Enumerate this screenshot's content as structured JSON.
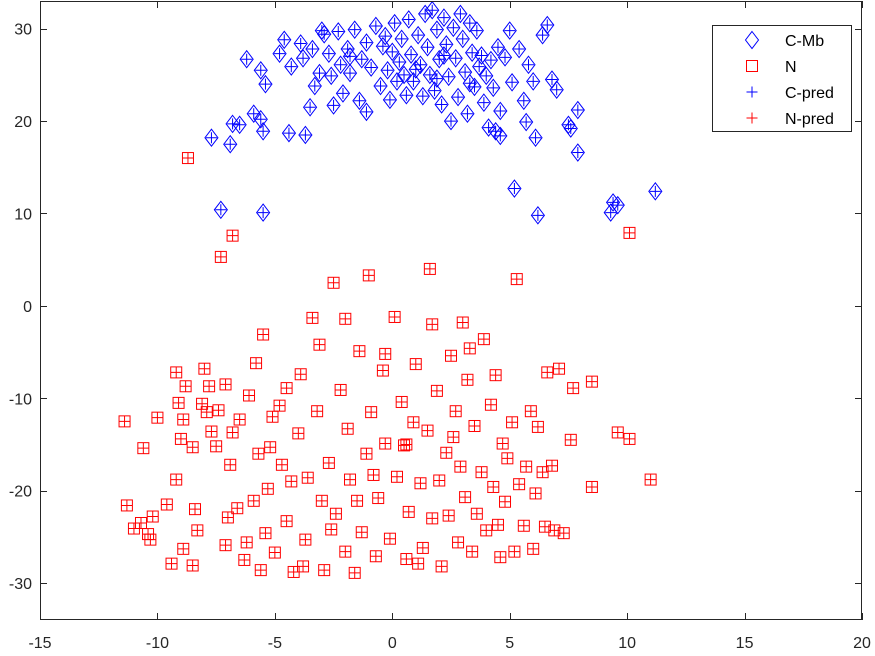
{
  "chart_data": {
    "type": "scatter",
    "title": "",
    "xlabel": "",
    "ylabel": "",
    "xlim": [
      -15,
      20
    ],
    "ylim": [
      -34,
      33
    ],
    "xticks": [
      -15,
      -10,
      -5,
      0,
      5,
      10,
      15,
      20
    ],
    "yticks": [
      -30,
      -20,
      -10,
      0,
      10,
      20,
      30
    ],
    "xtick_labels": [
      "-15",
      "-10",
      "-5",
      "0",
      "5",
      "10",
      "15",
      "20"
    ],
    "ytick_labels": [
      "-30",
      "-20",
      "-10",
      "0",
      "10",
      "20",
      "30"
    ],
    "grid": false,
    "legend_position": "top-right",
    "series": [
      {
        "name": "C-Mb",
        "marker": "diamond",
        "color": "#0000ff",
        "points": [
          [
            -7.7,
            18.2
          ],
          [
            -7.3,
            10.4
          ],
          [
            -6.8,
            19.7
          ],
          [
            -6.9,
            17.5
          ],
          [
            -6.5,
            19.6
          ],
          [
            -6.2,
            26.7
          ],
          [
            -5.9,
            20.8
          ],
          [
            -5.6,
            20.2
          ],
          [
            -5.5,
            18.9
          ],
          [
            -5.6,
            25.5
          ],
          [
            -5.5,
            10.1
          ],
          [
            -5.4,
            24.0
          ],
          [
            -4.8,
            27.3
          ],
          [
            -4.6,
            28.8
          ],
          [
            -4.4,
            18.7
          ],
          [
            -4.3,
            25.9
          ],
          [
            -3.9,
            28.4
          ],
          [
            -3.8,
            26.8
          ],
          [
            -3.7,
            18.5
          ],
          [
            -3.5,
            21.5
          ],
          [
            -3.4,
            27.8
          ],
          [
            -3.3,
            23.8
          ],
          [
            -3.1,
            25.2
          ],
          [
            -3.0,
            29.8
          ],
          [
            -2.7,
            27.3
          ],
          [
            -2.6,
            24.9
          ],
          [
            -2.5,
            21.7
          ],
          [
            -2.3,
            29.7
          ],
          [
            -2.2,
            26.1
          ],
          [
            -2.1,
            23.0
          ],
          [
            -1.9,
            27.8
          ],
          [
            -1.8,
            25.2
          ],
          [
            -1.6,
            29.9
          ],
          [
            -1.4,
            22.2
          ],
          [
            -1.3,
            26.7
          ],
          [
            -1.1,
            28.5
          ],
          [
            -1.1,
            21.0
          ],
          [
            -0.9,
            25.8
          ],
          [
            -0.7,
            30.3
          ],
          [
            -0.5,
            23.8
          ],
          [
            -0.4,
            28.1
          ],
          [
            -0.2,
            25.5
          ],
          [
            -0.1,
            22.3
          ],
          [
            0.0,
            27.5
          ],
          [
            0.1,
            30.6
          ],
          [
            0.2,
            24.3
          ],
          [
            0.4,
            28.9
          ],
          [
            0.5,
            25.0
          ],
          [
            0.6,
            22.8
          ],
          [
            0.7,
            31.0
          ],
          [
            0.8,
            27.2
          ],
          [
            0.9,
            24.3
          ],
          [
            1.1,
            29.3
          ],
          [
            1.2,
            26.1
          ],
          [
            1.3,
            22.7
          ],
          [
            1.4,
            31.6
          ],
          [
            1.5,
            28.0
          ],
          [
            1.6,
            25.0
          ],
          [
            1.7,
            32.0
          ],
          [
            1.8,
            23.3
          ],
          [
            1.9,
            29.9
          ],
          [
            2.0,
            26.7
          ],
          [
            2.1,
            21.8
          ],
          [
            2.2,
            31.2
          ],
          [
            2.3,
            28.3
          ],
          [
            2.4,
            24.8
          ],
          [
            2.5,
            20.0
          ],
          [
            2.6,
            30.1
          ],
          [
            2.7,
            26.8
          ],
          [
            2.8,
            22.6
          ],
          [
            2.9,
            31.6
          ],
          [
            3.0,
            28.9
          ],
          [
            3.1,
            25.3
          ],
          [
            3.2,
            20.8
          ],
          [
            3.3,
            30.6
          ],
          [
            3.4,
            27.4
          ],
          [
            3.5,
            23.7
          ],
          [
            3.6,
            29.8
          ],
          [
            3.7,
            25.9
          ],
          [
            3.9,
            22.0
          ],
          [
            4.0,
            24.9
          ],
          [
            4.1,
            19.3
          ],
          [
            4.2,
            26.6
          ],
          [
            4.3,
            23.6
          ],
          [
            4.4,
            18.9
          ],
          [
            4.5,
            28.0
          ],
          [
            4.6,
            21.1
          ],
          [
            4.6,
            18.4
          ],
          [
            4.8,
            26.9
          ],
          [
            5.0,
            29.8
          ],
          [
            5.1,
            24.2
          ],
          [
            5.2,
            12.7
          ],
          [
            5.4,
            27.8
          ],
          [
            5.6,
            22.2
          ],
          [
            5.7,
            19.9
          ],
          [
            5.8,
            26.1
          ],
          [
            6.0,
            24.3
          ],
          [
            6.1,
            18.2
          ],
          [
            6.2,
            9.8
          ],
          [
            6.4,
            29.3
          ],
          [
            6.6,
            30.4
          ],
          [
            6.8,
            24.5
          ],
          [
            7.0,
            23.4
          ],
          [
            7.5,
            19.6
          ],
          [
            7.6,
            19.2
          ],
          [
            7.9,
            21.2
          ],
          [
            7.9,
            16.6
          ],
          [
            9.3,
            10.1
          ],
          [
            9.4,
            11.2
          ],
          [
            9.6,
            10.9
          ],
          [
            11.2,
            12.4
          ],
          [
            -1.8,
            27.0
          ],
          [
            -0.3,
            29.2
          ],
          [
            1.0,
            25.6
          ],
          [
            2.2,
            27.1
          ],
          [
            3.3,
            24.1
          ],
          [
            -2.9,
            29.4
          ],
          [
            0.3,
            26.4
          ],
          [
            1.9,
            24.6
          ],
          [
            3.8,
            27.1
          ]
        ]
      },
      {
        "name": "N",
        "marker": "square",
        "color": "#ff0000",
        "points": [
          [
            -11.4,
            -12.5
          ],
          [
            -11.3,
            -21.6
          ],
          [
            -11.0,
            -24.1
          ],
          [
            -10.7,
            -23.5
          ],
          [
            -10.6,
            -15.4
          ],
          [
            -10.4,
            -24.7
          ],
          [
            -10.3,
            -25.3
          ],
          [
            -10.2,
            -22.8
          ],
          [
            -10.0,
            -12.1
          ],
          [
            -9.6,
            -21.5
          ],
          [
            -9.4,
            -27.9
          ],
          [
            -9.2,
            -18.8
          ],
          [
            -9.2,
            -7.2
          ],
          [
            -9.1,
            -10.5
          ],
          [
            -9.0,
            -14.4
          ],
          [
            -8.9,
            -12.3
          ],
          [
            -8.9,
            -26.3
          ],
          [
            -8.8,
            -8.7
          ],
          [
            -8.7,
            16.0
          ],
          [
            -8.5,
            -15.3
          ],
          [
            -8.5,
            -28.1
          ],
          [
            -8.4,
            -22.0
          ],
          [
            -8.3,
            -24.3
          ],
          [
            -8.1,
            -10.6
          ],
          [
            -8.0,
            -6.8
          ],
          [
            -7.9,
            -11.5
          ],
          [
            -7.8,
            -8.7
          ],
          [
            -7.7,
            -13.6
          ],
          [
            -7.5,
            -15.2
          ],
          [
            -7.4,
            -11.3
          ],
          [
            -7.3,
            5.3
          ],
          [
            -7.1,
            -8.5
          ],
          [
            -7.1,
            -25.9
          ],
          [
            -7.0,
            -22.9
          ],
          [
            -6.9,
            -17.2
          ],
          [
            -6.8,
            7.6
          ],
          [
            -6.6,
            -21.9
          ],
          [
            -6.5,
            -12.3
          ],
          [
            -6.3,
            -27.5
          ],
          [
            -6.2,
            -25.6
          ],
          [
            -6.1,
            -9.7
          ],
          [
            -5.9,
            -21.1
          ],
          [
            -5.8,
            -6.2
          ],
          [
            -5.7,
            -16.0
          ],
          [
            -5.6,
            -28.6
          ],
          [
            -5.5,
            -3.1
          ],
          [
            -5.4,
            -24.6
          ],
          [
            -5.3,
            -19.8
          ],
          [
            -5.1,
            -12.0
          ],
          [
            -5.0,
            -26.7
          ],
          [
            -4.8,
            -10.8
          ],
          [
            -4.7,
            -17.2
          ],
          [
            -4.5,
            -23.3
          ],
          [
            -4.3,
            -19.0
          ],
          [
            -4.2,
            -28.8
          ],
          [
            -4.0,
            -13.8
          ],
          [
            -3.9,
            -7.4
          ],
          [
            -3.7,
            -25.3
          ],
          [
            -3.6,
            -18.6
          ],
          [
            -3.4,
            -1.3
          ],
          [
            -3.2,
            -11.4
          ],
          [
            -3.0,
            -21.1
          ],
          [
            -2.9,
            -28.6
          ],
          [
            -2.7,
            -17.0
          ],
          [
            -2.5,
            2.5
          ],
          [
            -2.4,
            -22.5
          ],
          [
            -2.2,
            -9.1
          ],
          [
            -2.0,
            -26.6
          ],
          [
            -1.9,
            -13.3
          ],
          [
            -1.8,
            -18.8
          ],
          [
            -1.6,
            -28.9
          ],
          [
            -1.4,
            -4.9
          ],
          [
            -1.3,
            -24.5
          ],
          [
            -1.1,
            -16.0
          ],
          [
            -1.0,
            3.3
          ],
          [
            -0.9,
            -11.5
          ],
          [
            -0.7,
            -27.1
          ],
          [
            -0.6,
            -20.8
          ],
          [
            -0.4,
            -7.0
          ],
          [
            -0.3,
            -14.9
          ],
          [
            -0.1,
            -25.2
          ],
          [
            0.1,
            -1.2
          ],
          [
            0.2,
            -18.5
          ],
          [
            0.4,
            -10.4
          ],
          [
            0.5,
            -15.1
          ],
          [
            0.6,
            -27.4
          ],
          [
            0.7,
            -22.3
          ],
          [
            0.9,
            -12.6
          ],
          [
            1.0,
            -6.3
          ],
          [
            1.2,
            -19.2
          ],
          [
            1.3,
            -26.2
          ],
          [
            1.5,
            -13.5
          ],
          [
            1.6,
            4.0
          ],
          [
            1.7,
            -23.0
          ],
          [
            1.9,
            -9.2
          ],
          [
            2.0,
            -18.9
          ],
          [
            2.1,
            -28.2
          ],
          [
            2.3,
            -15.9
          ],
          [
            2.4,
            -22.7
          ],
          [
            2.5,
            -5.4
          ],
          [
            2.7,
            -11.4
          ],
          [
            2.8,
            -25.6
          ],
          [
            2.9,
            -17.4
          ],
          [
            3.1,
            -20.7
          ],
          [
            3.2,
            -8.0
          ],
          [
            3.4,
            -26.6
          ],
          [
            3.5,
            -13.0
          ],
          [
            3.6,
            -22.5
          ],
          [
            3.8,
            -18.0
          ],
          [
            3.9,
            -3.6
          ],
          [
            4.0,
            -24.3
          ],
          [
            4.2,
            -10.7
          ],
          [
            4.3,
            -19.6
          ],
          [
            4.4,
            -7.5
          ],
          [
            4.6,
            -27.2
          ],
          [
            4.7,
            -14.9
          ],
          [
            4.8,
            -21.2
          ],
          [
            4.9,
            -16.5
          ],
          [
            5.1,
            -12.6
          ],
          [
            5.2,
            -26.6
          ],
          [
            5.3,
            2.9
          ],
          [
            5.4,
            -19.3
          ],
          [
            5.6,
            -23.8
          ],
          [
            5.7,
            -17.4
          ],
          [
            5.9,
            -11.4
          ],
          [
            6.0,
            -26.3
          ],
          [
            6.1,
            -20.3
          ],
          [
            6.2,
            -13.1
          ],
          [
            6.4,
            -18.0
          ],
          [
            6.5,
            -23.9
          ],
          [
            6.6,
            -7.2
          ],
          [
            6.8,
            -17.3
          ],
          [
            6.9,
            -24.3
          ],
          [
            7.1,
            -6.8
          ],
          [
            7.3,
            -24.6
          ],
          [
            7.6,
            -14.5
          ],
          [
            7.7,
            -8.9
          ],
          [
            8.5,
            -8.2
          ],
          [
            8.5,
            -19.6
          ],
          [
            9.6,
            -13.7
          ],
          [
            10.1,
            -14.4
          ],
          [
            10.1,
            7.9
          ],
          [
            11.0,
            -18.8
          ],
          [
            -2.0,
            -1.4
          ],
          [
            -0.3,
            -5.2
          ],
          [
            1.7,
            -2.0
          ],
          [
            3.0,
            -1.8
          ],
          [
            -4.5,
            -8.9
          ],
          [
            -1.5,
            -21.1
          ],
          [
            0.6,
            -15.0
          ],
          [
            -6.8,
            -13.7
          ],
          [
            -3.8,
            -28.2
          ],
          [
            -2.6,
            -24.2
          ],
          [
            -0.8,
            -18.3
          ],
          [
            2.6,
            -14.2
          ],
          [
            4.5,
            -23.7
          ],
          [
            -5.2,
            -15.3
          ],
          [
            -3.1,
            -4.2
          ],
          [
            1.1,
            -27.9
          ],
          [
            3.3,
            -4.6
          ]
        ]
      },
      {
        "name": "C-pred",
        "marker": "plus",
        "color": "#0000ff",
        "points": "same-as:C-Mb"
      },
      {
        "name": "N-pred",
        "marker": "plus",
        "color": "#ff0000",
        "points": "same-as:N"
      }
    ]
  }
}
